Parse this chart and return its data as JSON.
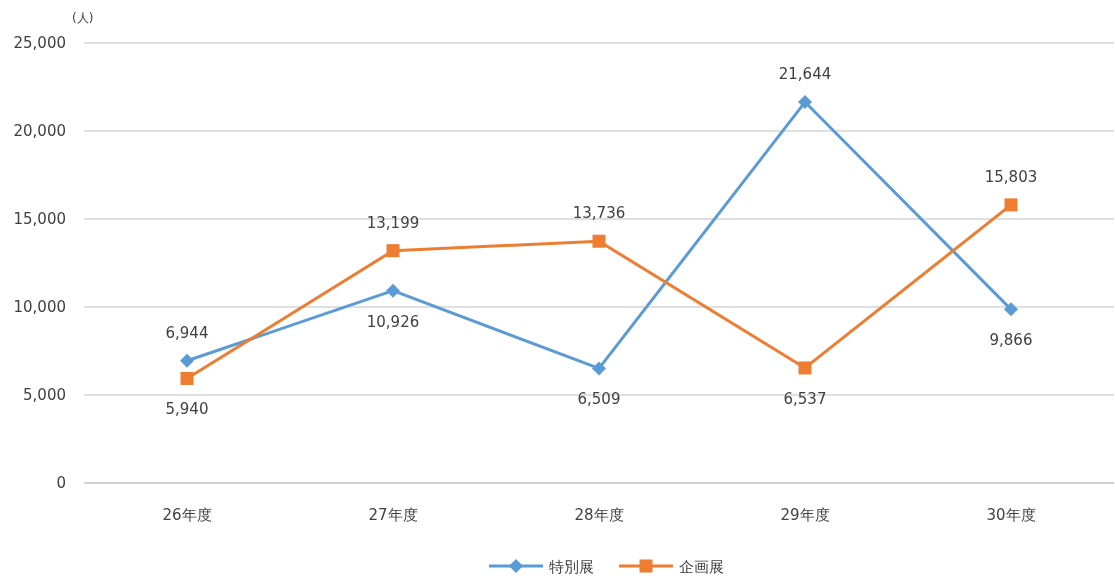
{
  "chart_data": {
    "type": "line",
    "ylabel": "(人)",
    "categories": [
      "26年度",
      "27年度",
      "28年度",
      "29年度",
      "30年度"
    ],
    "series": [
      {
        "name": "特別展",
        "color": "#5b9bd5",
        "marker": "diamond",
        "values": [
          6944,
          10926,
          6509,
          21644,
          9866
        ],
        "value_labels": [
          "6,944",
          "10,926",
          "6,509",
          "21,644",
          "9,866"
        ]
      },
      {
        "name": "企画展",
        "color": "#ed7d31",
        "marker": "square",
        "values": [
          5940,
          13199,
          13736,
          6537,
          15803
        ],
        "value_labels": [
          "5,940",
          "13,199",
          "13,736",
          "6,537",
          "15,803"
        ]
      }
    ],
    "ylim": [
      0,
      25000
    ],
    "yticks": [
      {
        "value": 0,
        "label": "0"
      },
      {
        "value": 5000,
        "label": "5,000"
      },
      {
        "value": 10000,
        "label": "10,000"
      },
      {
        "value": 15000,
        "label": "15,000"
      },
      {
        "value": 20000,
        "label": "20,000"
      },
      {
        "value": 25000,
        "label": "25,000"
      }
    ],
    "grid": "y",
    "legend": "bottom",
    "line_style": "solid"
  }
}
